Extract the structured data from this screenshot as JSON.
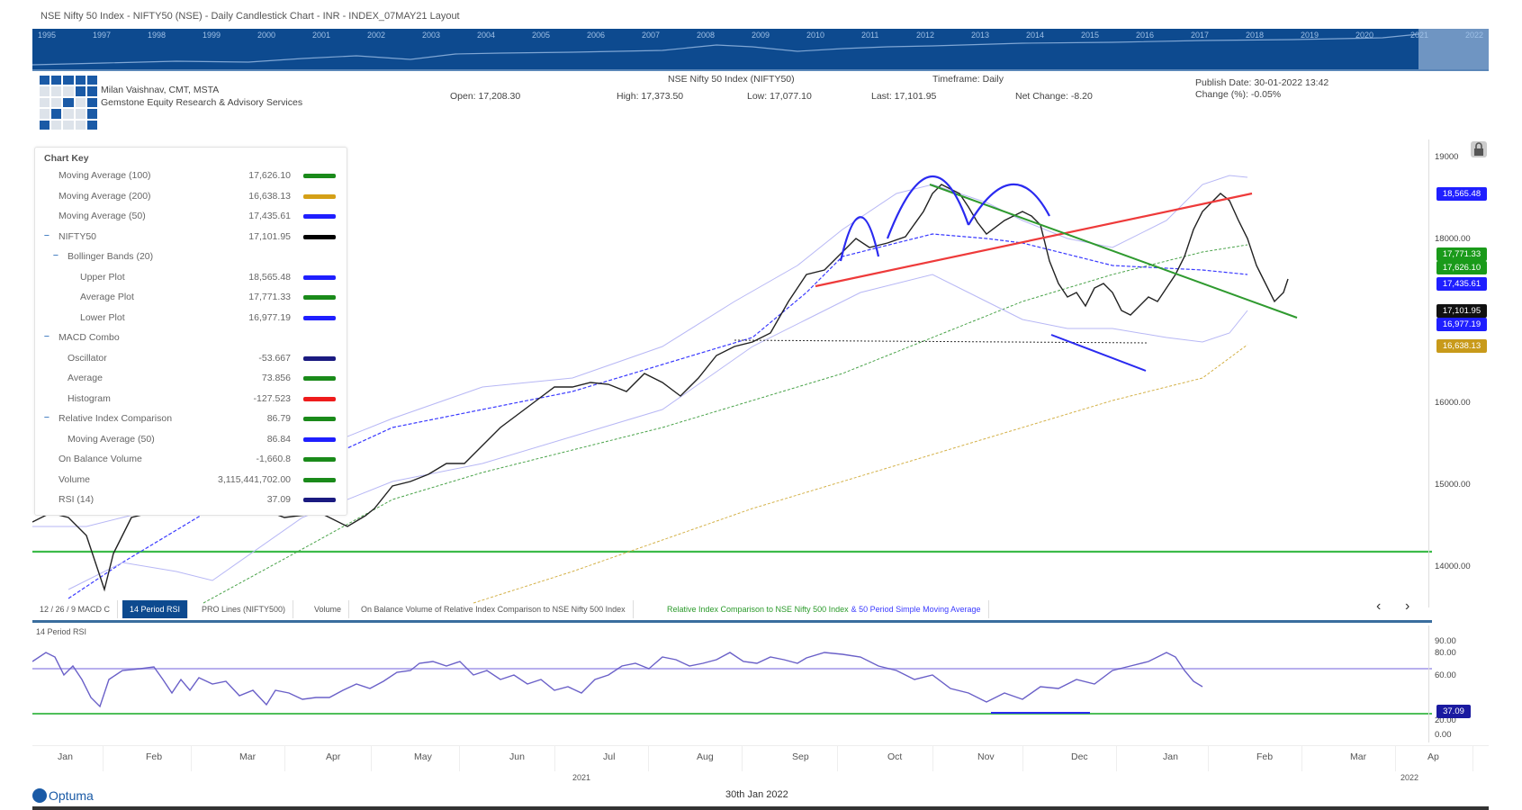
{
  "header": {
    "title": "NSE Nifty 50 Index - NIFTY50 (NSE) - Daily Candlestick Chart - INR - INDEX_07MAY21 Layout",
    "author": "Milan Vaishnav, CMT, MSTA",
    "company": "Gemstone Equity Research & Advisory Services",
    "instrument": "NSE Nifty 50 Index (NIFTY50)",
    "timeframe": "Timeframe: Daily",
    "open": "Open: 17,208.30",
    "high": "High: 17,373.50",
    "low": "Low: 17,077.10",
    "last": "Last: 17,101.95",
    "net_change": "Net Change: -8.20",
    "publish_date": "Publish Date: 30-01-2022 13:42",
    "change_pct": "Change (%): -0.05%"
  },
  "overview": {
    "years": [
      "1995",
      "1997",
      "1998",
      "1999",
      "2000",
      "2001",
      "2002",
      "2003",
      "2004",
      "2005",
      "2006",
      "2007",
      "2008",
      "2009",
      "2010",
      "2011",
      "2012",
      "2013",
      "2014",
      "2015",
      "2016",
      "2017",
      "2018",
      "2019",
      "2020",
      "2021",
      "2022"
    ]
  },
  "chart_key": {
    "title": "Chart Key",
    "rows": [
      {
        "label": "Moving Average (100)",
        "value": "17,626.10",
        "color": "#1a8a1a",
        "indent": 1
      },
      {
        "label": "Moving Average (200)",
        "value": "16,638.13",
        "color": "#d4a017",
        "indent": 1
      },
      {
        "label": "Moving Average (50)",
        "value": "17,435.61",
        "color": "#1f1fff",
        "indent": 1
      },
      {
        "label": "NIFTY50",
        "value": "17,101.95",
        "color": "#000000",
        "indent": 1,
        "toggle": true
      },
      {
        "label": "Bollinger Bands (20)",
        "value": "",
        "color": "",
        "indent": 2,
        "toggle": true
      },
      {
        "label": "Upper Plot",
        "value": "18,565.48",
        "color": "#1f1fff",
        "indent": 3
      },
      {
        "label": "Average Plot",
        "value": "17,771.33",
        "color": "#1a8a1a",
        "indent": 3
      },
      {
        "label": "Lower Plot",
        "value": "16,977.19",
        "color": "#1f1fff",
        "indent": 3
      },
      {
        "label": "MACD Combo",
        "value": "",
        "color": "",
        "indent": 1,
        "toggle": true
      },
      {
        "label": "Oscillator",
        "value": "-53.667",
        "color": "#1a1a80",
        "indent": 2
      },
      {
        "label": "Average",
        "value": "73.856",
        "color": "#1a8a1a",
        "indent": 2
      },
      {
        "label": "Histogram",
        "value": "-127.523",
        "color": "#ee1c1c",
        "indent": 2
      },
      {
        "label": "Relative Index Comparison",
        "value": "86.79",
        "color": "#1a8a1a",
        "indent": 1,
        "toggle": true
      },
      {
        "label": "Moving Average (50)",
        "value": "86.84",
        "color": "#1f1fff",
        "indent": 2
      },
      {
        "label": "On Balance Volume",
        "value": "-1,660.8",
        "color": "#1a8a1a",
        "indent": 1
      },
      {
        "label": "Volume",
        "value": "3,115,441,702.00",
        "color": "#1a8a1a",
        "indent": 1
      },
      {
        "label": "RSI (14)",
        "value": "37.09",
        "color": "#1a1a80",
        "indent": 1
      }
    ]
  },
  "price_axis": {
    "ticks": [
      {
        "label": "19000",
        "y": 14
      },
      {
        "label": "18000.00",
        "y": 105
      },
      {
        "label": "16000.00",
        "y": 287
      },
      {
        "label": "15000.00",
        "y": 378
      },
      {
        "label": "14000.00",
        "y": 469
      }
    ],
    "badges": [
      {
        "label": "18,565.48",
        "color": "#1f1fff",
        "y": 53
      },
      {
        "label": "17,771.33",
        "color": "#1a9a1a",
        "y": 120
      },
      {
        "label": "17,626.10",
        "color": "#1a9a1a",
        "y": 135
      },
      {
        "label": "17,435.61",
        "color": "#1f1fff",
        "y": 153
      },
      {
        "label": "17,101.95",
        "color": "#111111",
        "y": 183
      },
      {
        "label": "16,977.19",
        "color": "#1f1fff",
        "y": 198
      },
      {
        "label": "16,638.13",
        "color": "#c89a1a",
        "y": 222
      }
    ]
  },
  "tabs": [
    {
      "label": "12 / 26 / 9 MACD C",
      "active": false
    },
    {
      "label": "14 Period RSI",
      "active": true
    },
    {
      "label": "PRO Lines (NIFTY500)",
      "active": false
    },
    {
      "label": "Volume",
      "active": false
    },
    {
      "label": "On Balance Volume of Relative Index Comparison to NSE Nifty 500 Index",
      "active": false
    },
    {
      "label": "Relative Index Comparison to NSE Nifty 500 Index",
      "label2": "& 50 Period Simple Moving Average",
      "active": false
    }
  ],
  "nav": {
    "prev": "‹",
    "next": "›"
  },
  "rsi": {
    "title": "14 Period RSI",
    "ticks": [
      "90.00",
      "80.00",
      "60.00",
      "20.00",
      "0.00"
    ],
    "current": "37.09"
  },
  "x_axis": {
    "months": [
      "Jan",
      "Feb",
      "Mar",
      "Apr",
      "May",
      "Jun",
      "Jul",
      "Aug",
      "Sep",
      "Oct",
      "Nov",
      "Dec",
      "Jan",
      "Feb",
      "Mar",
      "Ap"
    ],
    "years": [
      "2021",
      "2022"
    ]
  },
  "footer": {
    "brand": "Optuma",
    "date": "30th Jan 2022"
  },
  "chart_data": {
    "type": "candlestick",
    "title": "NSE Nifty 50 Index - NIFTY50 (NSE) - Daily Candlestick Chart",
    "x": [
      "Jan-21",
      "Feb-21",
      "Mar-21",
      "Apr-21",
      "May-21",
      "Jun-21",
      "Jul-21",
      "Aug-21",
      "Sep-21",
      "Oct-21",
      "Nov-21",
      "Dec-21",
      "Jan-22"
    ],
    "approx_close": [
      14300,
      15100,
      14700,
      14500,
      15000,
      15700,
      15800,
      16300,
      17600,
      18100,
      17400,
      17000,
      17102
    ],
    "ohlc_last": {
      "open": 17208.3,
      "high": 17373.5,
      "low": 17077.1,
      "close": 17101.95,
      "net_change": -8.2,
      "change_pct": -0.05
    },
    "indicators": {
      "MA100": 17626.1,
      "MA200": 16638.13,
      "MA50": 17435.61,
      "BB_upper": 18565.48,
      "BB_mid": 17771.33,
      "BB_lower": 16977.19,
      "MACD_osc": -53.667,
      "MACD_avg": 73.856,
      "MACD_hist": -127.523,
      "RIC": 86.79,
      "RIC_MA50": 86.84,
      "OBV": -1660.8,
      "Volume": 3115441702.0,
      "RSI14": 37.09
    },
    "ylim": [
      13500,
      19200
    ],
    "y_ticks": [
      14000,
      15000,
      16000,
      18000,
      19000
    ],
    "annotations": [
      "Support line ~14,200 (green horizontal)",
      "Rising red trendline from Sep-21 to Jan-22",
      "Falling green trendline from Oct-21 peak",
      "Dotted support ~16,400 Aug-Dec",
      "Head and shoulders arcs Sep-Nov 2021",
      "Blue divergence lines Nov-Dec"
    ],
    "rsi_panel": {
      "ylim": [
        0,
        100
      ],
      "levels": [
        70,
        30
      ],
      "last": 37.09
    }
  }
}
